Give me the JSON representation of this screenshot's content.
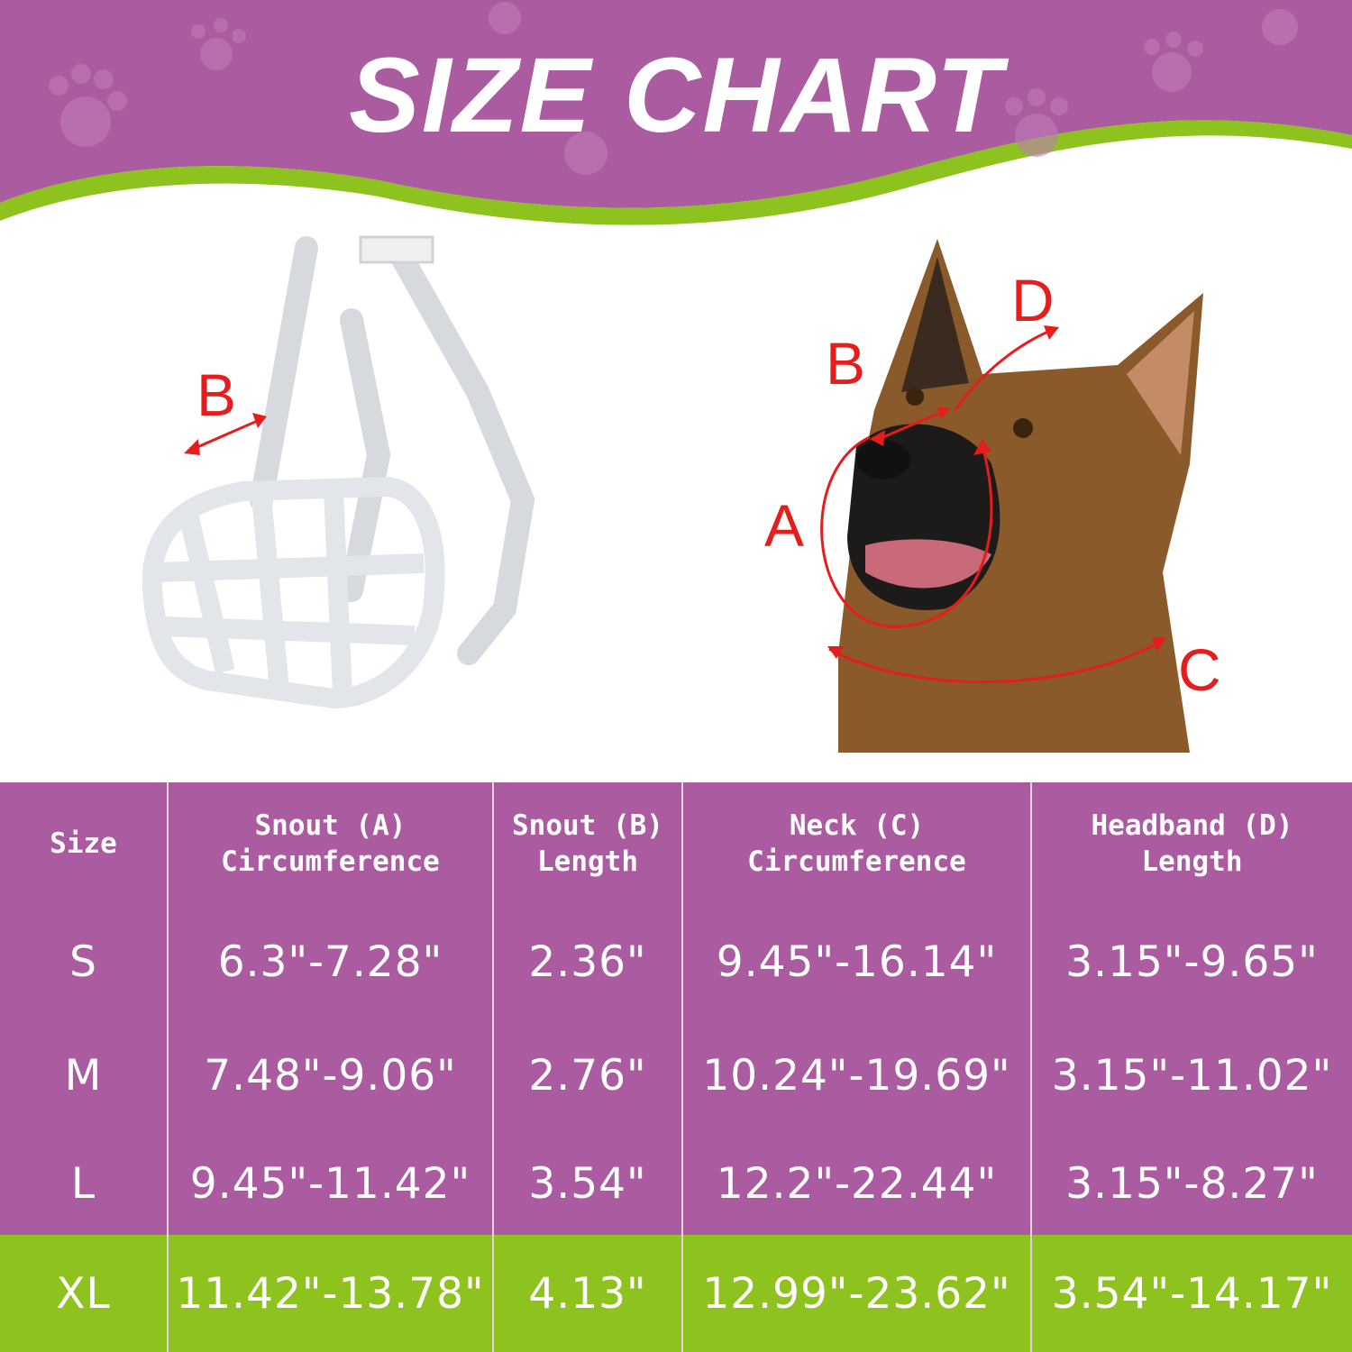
{
  "title": "SIZE CHART",
  "colors": {
    "purple": "#ab5ca0",
    "green": "#8dc21f",
    "measure_red": "#e51d1d"
  },
  "muzzle_diagram": {
    "labels": {
      "b": "B"
    }
  },
  "dog_diagram": {
    "labels": {
      "a": "A",
      "b": "B",
      "c": "C",
      "d": "D"
    }
  },
  "table": {
    "headers": [
      {
        "line1": "Size",
        "line2": ""
      },
      {
        "line1": "Snout  (A)",
        "line2": "Circumference"
      },
      {
        "line1": "Snout  (B)",
        "line2": "Length"
      },
      {
        "line1": "Neck  (C)",
        "line2": "Circumference"
      },
      {
        "line1": "Headband  (D)",
        "line2": "Length"
      }
    ],
    "rows": [
      [
        "S",
        "6.3\"-7.28\"",
        "2.36\"",
        "9.45\"-16.14\"",
        "3.15\"-9.65\""
      ],
      [
        "M",
        "7.48\"-9.06\"",
        "2.76\"",
        "10.24\"-19.69\"",
        "3.15\"-11.02\""
      ],
      [
        "L",
        "9.45\"-11.42\"",
        "3.54\"",
        "12.2\"-22.44\"",
        "3.15\"-8.27\""
      ],
      [
        "XL",
        "11.42\"-13.78\"",
        "4.13\"",
        "12.99\"-23.62\"",
        "3.54\"-14.17\""
      ]
    ],
    "highlighted_row": "XL"
  }
}
